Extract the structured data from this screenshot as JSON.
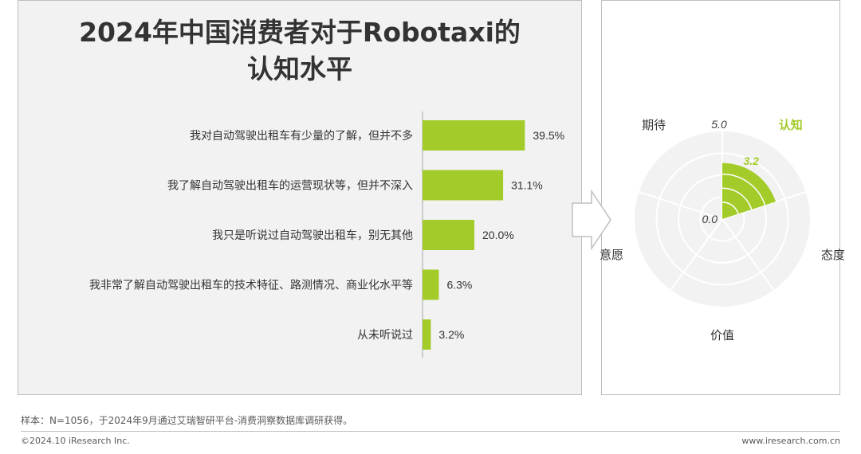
{
  "title": "2024年中国消费者对于Robotaxi的认知水平",
  "colors": {
    "accent": "#a3cc2a",
    "text": "#333333",
    "axis": "#bfbfbf",
    "panel_bg": "#f2f2f2"
  },
  "chart_data": [
    {
      "type": "bar",
      "orientation": "horizontal",
      "title": "2024年中国消费者对于Robotaxi的认知水平",
      "categories": [
        "我对自动驾驶出租车有少量的了解，但并不多",
        "我了解自动驾驶出租车的运营现状等，但并不深入",
        "我只是听说过自动驾驶出租车，别无其他",
        "我非常了解自动驾驶出租车的技术特征、路测情况、商业化水平等",
        "从未听说过"
      ],
      "values": [
        39.5,
        31.1,
        20.0,
        6.3,
        3.2
      ],
      "data_labels": [
        "39.5%",
        "31.1%",
        "20.0%",
        "6.3%",
        "3.2%"
      ],
      "unit": "%",
      "xlim": [
        0,
        50
      ]
    },
    {
      "type": "polar",
      "axes": [
        "认知",
        "态度",
        "价值",
        "意愿",
        "期待"
      ],
      "values": [
        3.2
      ],
      "value_labels": [
        "3.2"
      ],
      "highlight": "认知",
      "rmin": 0.0,
      "rmax": 5.0,
      "r_labels": [
        "5.0",
        "0.0"
      ]
    }
  ],
  "arrow_icon": "chevron-right-arrow",
  "footer": {
    "note": "样本：N=1056，于2024年9月通过艾瑞智研平台-消费洞察数据库调研获得。",
    "copyright": "©2024.10 iResearch Inc.",
    "website": "www.iresearch.com.cn"
  }
}
